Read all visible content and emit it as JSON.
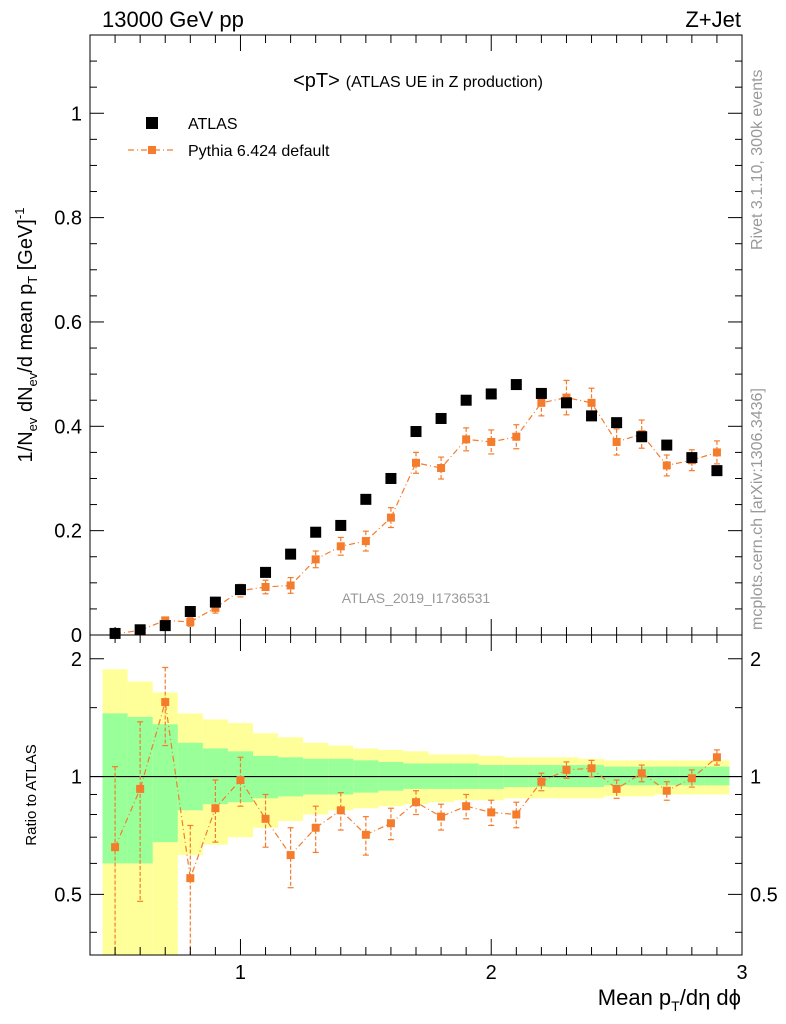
{
  "header": {
    "left": "13000 GeV pp",
    "right": "Z+Jet"
  },
  "side": {
    "rivet": "Rivet 3.1.10,  300k events",
    "mcplots": "mcplots.cern.ch [arXiv:1306.3436]"
  },
  "colors": {
    "atlas": "#000000",
    "pythia": "#f47c2c",
    "band_inner": "#99ff99",
    "band_outer": "#ffff99",
    "watermark": "#999999"
  },
  "chart_data": [
    {
      "type": "scatter",
      "title_main": "<pT>",
      "title_sub": "(ATLAS UE in Z production)",
      "ylabel_parts": {
        "a": "1/N",
        "b": "ev",
        "c": " dN",
        "d": "ev",
        "e": "/d mean p",
        "f": "T",
        "g": " [GeV]",
        "h": "-1"
      },
      "watermark": "ATLAS_2019_I1736531",
      "ylim": [
        0,
        1.15
      ],
      "yticks": [
        0,
        0.2,
        0.4,
        0.6,
        0.8,
        1
      ],
      "ytick_labels": [
        "0",
        "0.2",
        "0.4",
        "0.6",
        "0.8",
        "1"
      ],
      "legend": [
        "ATLAS",
        "Pythia 6.424 default"
      ],
      "legend_position": "top-left",
      "x": [
        0.5,
        0.6,
        0.7,
        0.8,
        0.9,
        1.0,
        1.1,
        1.2,
        1.3,
        1.4,
        1.5,
        1.6,
        1.7,
        1.8,
        1.9,
        2.0,
        2.1,
        2.2,
        2.3,
        2.4,
        2.5,
        2.6,
        2.7,
        2.8,
        2.9
      ],
      "series": [
        {
          "name": "ATLAS",
          "values": [
            0.003,
            0.01,
            0.018,
            0.045,
            0.063,
            0.087,
            0.12,
            0.155,
            0.197,
            0.21,
            0.26,
            0.3,
            0.39,
            0.415,
            0.45,
            0.462,
            0.48,
            0.463,
            0.445,
            0.42,
            0.407,
            0.38,
            0.364,
            0.34,
            0.315
          ]
        },
        {
          "name": "Pythia 6.424 default",
          "values": [
            0.002,
            0.009,
            0.028,
            0.025,
            0.052,
            0.085,
            0.092,
            0.095,
            0.145,
            0.17,
            0.18,
            0.225,
            0.33,
            0.32,
            0.375,
            0.37,
            0.38,
            0.445,
            0.455,
            0.445,
            0.37,
            0.385,
            0.325,
            0.335,
            0.35
          ],
          "errors": [
            0.002,
            0.004,
            0.006,
            0.008,
            0.01,
            0.012,
            0.013,
            0.015,
            0.016,
            0.017,
            0.019,
            0.019,
            0.02,
            0.021,
            0.022,
            0.023,
            0.023,
            0.025,
            0.033,
            0.028,
            0.025,
            0.027,
            0.02,
            0.02,
            0.022
          ]
        }
      ]
    },
    {
      "type": "scatter",
      "ylabel": "Ratio to ATLAS",
      "xlabel_parts": {
        "a": "Mean p",
        "b": "T",
        "c": "/dη dϕ"
      },
      "xlim": [
        0.4,
        3.0
      ],
      "xticks": [
        1,
        2,
        3
      ],
      "xtick_labels": [
        "1",
        "2",
        "3"
      ],
      "ylim": [
        0.35,
        2.3
      ],
      "yticks": [
        0.5,
        1,
        2
      ],
      "ytick_labels": [
        "0.5",
        "1",
        "2"
      ],
      "reference_line": 1,
      "x": [
        0.5,
        0.6,
        0.7,
        0.8,
        0.9,
        1.0,
        1.1,
        1.2,
        1.3,
        1.4,
        1.5,
        1.6,
        1.7,
        1.8,
        1.9,
        2.0,
        2.1,
        2.2,
        2.3,
        2.4,
        2.5,
        2.6,
        2.7,
        2.8,
        2.9
      ],
      "bin_edges": [
        0.45,
        0.55,
        0.65,
        0.75,
        0.85,
        0.95,
        1.05,
        1.15,
        1.25,
        1.35,
        1.45,
        1.55,
        1.65,
        1.75,
        1.85,
        1.95,
        2.05,
        2.15,
        2.25,
        2.35,
        2.45,
        2.55,
        2.65,
        2.75,
        2.85,
        2.95
      ],
      "ratio": [
        0.66,
        0.93,
        1.55,
        0.55,
        0.83,
        0.98,
        0.78,
        0.63,
        0.74,
        0.82,
        0.71,
        0.76,
        0.86,
        0.79,
        0.84,
        0.81,
        0.8,
        0.97,
        1.04,
        1.05,
        0.93,
        1.02,
        0.92,
        0.99,
        1.12
      ],
      "ratio_err": [
        0.4,
        0.45,
        0.35,
        0.2,
        0.15,
        0.14,
        0.12,
        0.11,
        0.1,
        0.09,
        0.08,
        0.07,
        0.06,
        0.06,
        0.06,
        0.06,
        0.06,
        0.05,
        0.05,
        0.05,
        0.05,
        0.05,
        0.05,
        0.05,
        0.05
      ],
      "band_inner": [
        [
          0.6,
          1.45
        ],
        [
          0.6,
          1.42
        ],
        [
          0.68,
          1.36
        ],
        [
          0.82,
          1.22
        ],
        [
          0.85,
          1.18
        ],
        [
          0.86,
          1.16
        ],
        [
          0.88,
          1.13
        ],
        [
          0.89,
          1.12
        ],
        [
          0.9,
          1.11
        ],
        [
          0.9,
          1.11
        ],
        [
          0.91,
          1.1
        ],
        [
          0.92,
          1.09
        ],
        [
          0.93,
          1.08
        ],
        [
          0.93,
          1.08
        ],
        [
          0.93,
          1.08
        ],
        [
          0.93,
          1.07
        ],
        [
          0.94,
          1.07
        ],
        [
          0.94,
          1.07
        ],
        [
          0.94,
          1.07
        ],
        [
          0.94,
          1.07
        ],
        [
          0.95,
          1.06
        ],
        [
          0.95,
          1.06
        ],
        [
          0.95,
          1.06
        ],
        [
          0.95,
          1.06
        ],
        [
          0.95,
          1.06
        ]
      ],
      "band_outer": [
        [
          0.3,
          1.88
        ],
        [
          0.3,
          1.75
        ],
        [
          0.3,
          1.64
        ],
        [
          0.63,
          1.45
        ],
        [
          0.67,
          1.4
        ],
        [
          0.7,
          1.37
        ],
        [
          0.74,
          1.29
        ],
        [
          0.77,
          1.26
        ],
        [
          0.8,
          1.22
        ],
        [
          0.82,
          1.2
        ],
        [
          0.83,
          1.18
        ],
        [
          0.84,
          1.17
        ],
        [
          0.85,
          1.16
        ],
        [
          0.86,
          1.14
        ],
        [
          0.87,
          1.14
        ],
        [
          0.87,
          1.13
        ],
        [
          0.88,
          1.12
        ],
        [
          0.88,
          1.12
        ],
        [
          0.88,
          1.12
        ],
        [
          0.88,
          1.11
        ],
        [
          0.89,
          1.1
        ],
        [
          0.89,
          1.1
        ],
        [
          0.9,
          1.1
        ],
        [
          0.9,
          1.1
        ],
        [
          0.9,
          1.1
        ]
      ]
    }
  ]
}
